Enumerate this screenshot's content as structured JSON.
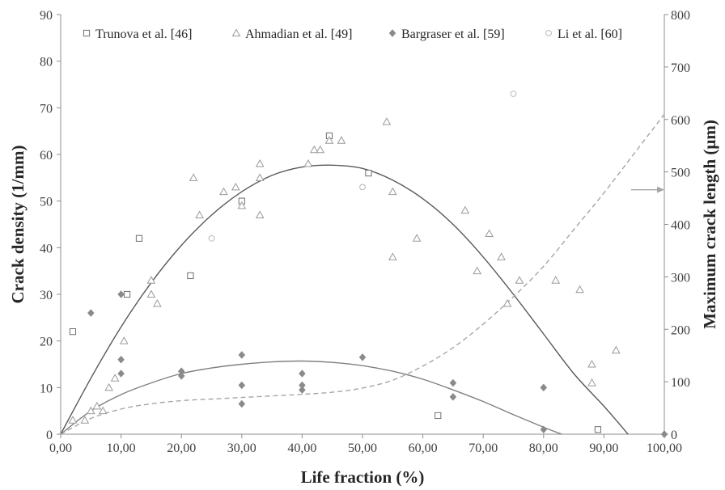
{
  "chart_data": {
    "type": "scatter",
    "xlabel": "Life fraction (%)",
    "ylabel": "Crack density (1/mm)",
    "y2label": "Maximum crack length (μm)",
    "xlim": [
      0,
      100
    ],
    "ylim": [
      0,
      90
    ],
    "y2lim": [
      0,
      800
    ],
    "x_ticks": [
      "0,00",
      "10,00",
      "20,00",
      "30,00",
      "40,00",
      "50,00",
      "60,00",
      "70,00",
      "80,00",
      "90,00",
      "100,00"
    ],
    "y_ticks": [
      "0",
      "10",
      "20",
      "30",
      "40",
      "50",
      "60",
      "70",
      "80",
      "90"
    ],
    "y2_ticks": [
      "0",
      "100",
      "200",
      "300",
      "400",
      "500",
      "600",
      "700",
      "800"
    ],
    "grid": false,
    "legend_position": "top",
    "series": [
      {
        "name": "Trunova et al. [46]",
        "marker": "open-square",
        "axis": "left",
        "color": "#707070",
        "points": [
          [
            2,
            22
          ],
          [
            11,
            30
          ],
          [
            13,
            42
          ],
          [
            21.5,
            34
          ],
          [
            30,
            50
          ],
          [
            44.5,
            64
          ],
          [
            51,
            56
          ],
          [
            62.5,
            4
          ],
          [
            89,
            1
          ]
        ]
      },
      {
        "name": "Ahmadian et al. [49]",
        "marker": "open-triangle",
        "axis": "left",
        "color": "#9a9a9a",
        "points": [
          [
            2,
            3
          ],
          [
            4,
            3
          ],
          [
            5,
            5
          ],
          [
            6,
            6
          ],
          [
            7,
            5
          ],
          [
            8,
            10
          ],
          [
            9,
            12
          ],
          [
            10.5,
            20
          ],
          [
            15,
            30
          ],
          [
            15,
            33
          ],
          [
            16,
            28
          ],
          [
            22,
            55
          ],
          [
            23,
            47
          ],
          [
            27,
            52
          ],
          [
            29,
            53
          ],
          [
            30,
            49
          ],
          [
            33,
            58
          ],
          [
            33,
            55
          ],
          [
            33,
            47
          ],
          [
            41,
            58
          ],
          [
            42,
            61
          ],
          [
            43,
            61
          ],
          [
            44.5,
            63
          ],
          [
            46.5,
            63
          ],
          [
            54,
            67
          ],
          [
            55,
            52
          ],
          [
            55,
            38
          ],
          [
            59,
            42
          ],
          [
            67,
            48
          ],
          [
            69,
            35
          ],
          [
            71,
            43
          ],
          [
            73,
            38
          ],
          [
            74,
            28
          ],
          [
            76,
            33
          ],
          [
            82,
            33
          ],
          [
            86,
            31
          ],
          [
            88,
            15
          ],
          [
            88,
            11
          ],
          [
            92,
            18
          ]
        ]
      },
      {
        "name": "Bargraser et al. [59]",
        "marker": "filled-diamond",
        "axis": "left",
        "color": "#8a8a8a",
        "points": [
          [
            5,
            26
          ],
          [
            10,
            30
          ],
          [
            10,
            16
          ],
          [
            10,
            13
          ],
          [
            20,
            13.5
          ],
          [
            20,
            12.5
          ],
          [
            30,
            17
          ],
          [
            30,
            10.5
          ],
          [
            30,
            6.5
          ],
          [
            40,
            13
          ],
          [
            40,
            10.5
          ],
          [
            40,
            9.5
          ],
          [
            50,
            16.5
          ],
          [
            65,
            11
          ],
          [
            65,
            8
          ],
          [
            80,
            10
          ],
          [
            80,
            1
          ],
          [
            100,
            0
          ]
        ]
      },
      {
        "name": "Li et al. [60]",
        "marker": "open-circle",
        "axis": "left",
        "color": "#b8b8b8",
        "points": [
          [
            25,
            42
          ],
          [
            50,
            53
          ],
          [
            75,
            73
          ]
        ]
      }
    ],
    "fits": [
      {
        "name": "crack density fit (upper)",
        "style": "solid",
        "axis": "left",
        "color": "#595959",
        "points": [
          [
            0,
            0
          ],
          [
            5,
            12
          ],
          [
            10,
            23
          ],
          [
            15,
            32.5
          ],
          [
            20,
            40.5
          ],
          [
            25,
            47
          ],
          [
            30,
            52
          ],
          [
            35,
            55.5
          ],
          [
            40,
            57.3
          ],
          [
            45,
            57.7
          ],
          [
            50,
            57
          ],
          [
            55,
            54.5
          ],
          [
            60,
            50.5
          ],
          [
            65,
            45
          ],
          [
            70,
            38
          ],
          [
            75,
            30
          ],
          [
            80,
            21.5
          ],
          [
            85,
            13
          ],
          [
            90,
            6
          ],
          [
            94,
            0
          ]
        ]
      },
      {
        "name": "crack density fit (lower)",
        "style": "solid",
        "axis": "left",
        "color": "#808080",
        "points": [
          [
            0,
            0
          ],
          [
            5,
            5
          ],
          [
            10,
            8.5
          ],
          [
            15,
            11
          ],
          [
            20,
            13
          ],
          [
            25,
            14.2
          ],
          [
            30,
            15
          ],
          [
            35,
            15.5
          ],
          [
            40,
            15.7
          ],
          [
            45,
            15.4
          ],
          [
            50,
            14.7
          ],
          [
            55,
            13.5
          ],
          [
            60,
            11.8
          ],
          [
            65,
            9.5
          ],
          [
            70,
            7
          ],
          [
            75,
            4.2
          ],
          [
            80,
            1.5
          ],
          [
            83,
            0
          ]
        ]
      },
      {
        "name": "maximum crack length fit",
        "style": "dashed",
        "axis": "right",
        "color": "#a6a6a6",
        "points": [
          [
            0,
            0
          ],
          [
            5,
            30
          ],
          [
            10,
            48
          ],
          [
            15,
            58
          ],
          [
            20,
            64
          ],
          [
            25,
            67
          ],
          [
            30,
            70
          ],
          [
            35,
            73
          ],
          [
            40,
            76
          ],
          [
            45,
            80
          ],
          [
            50,
            88
          ],
          [
            55,
            103
          ],
          [
            60,
            130
          ],
          [
            65,
            165
          ],
          [
            70,
            210
          ],
          [
            75,
            262
          ],
          [
            80,
            320
          ],
          [
            85,
            390
          ],
          [
            90,
            460
          ],
          [
            95,
            535
          ],
          [
            100,
            610
          ]
        ]
      }
    ],
    "annotations": [
      {
        "type": "arrow",
        "direction": "right",
        "from": [
          94.5,
          466
        ],
        "to": [
          100,
          466
        ],
        "axis": "right",
        "color": "#a6a6a6"
      }
    ]
  }
}
